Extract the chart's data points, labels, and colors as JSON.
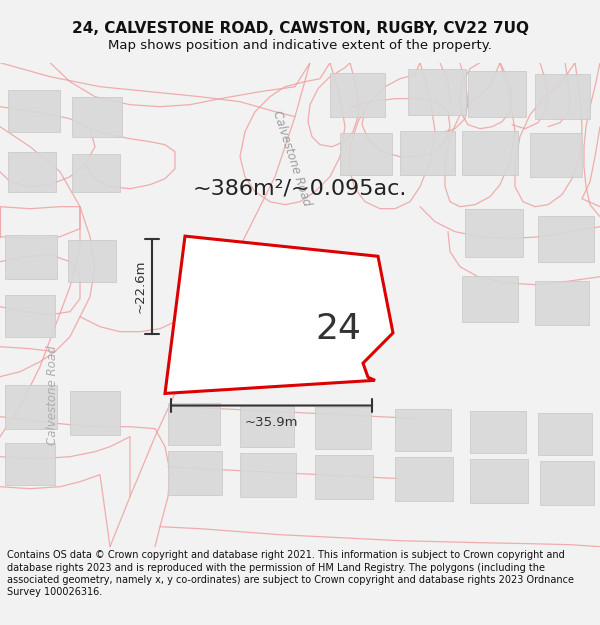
{
  "title_line1": "24, CALVESTONE ROAD, CAWSTON, RUGBY, CV22 7UQ",
  "title_line2": "Map shows position and indicative extent of the property.",
  "area_text": "~386m²/~0.095ac.",
  "plot_number": "24",
  "dim_width": "~35.9m",
  "dim_height": "~22.6m",
  "road_label_diagonal": "Calvestone Road",
  "road_label_left": "Calvestone Road",
  "footer_text": "Contains OS data © Crown copyright and database right 2021. This information is subject to Crown copyright and database rights 2023 and is reproduced with the permission of HM Land Registry. The polygons (including the associated geometry, namely x, y co-ordinates) are subject to Crown copyright and database rights 2023 Ordnance Survey 100026316.",
  "bg_color": "#f2f2f2",
  "map_bg": "#ffffff",
  "plot_edge": "#dd0000",
  "plot_edge_lw": 2.2,
  "road_line_color": "#f0a0a0",
  "building_fill": "#d8d8d8",
  "building_edge": "#c8c8c8",
  "dim_color": "#333333",
  "title_fontsize": 11,
  "subtitle_fontsize": 9.5,
  "footer_fontsize": 7.0,
  "area_fontsize": 16,
  "plot_num_fontsize": 26,
  "road_label_fontsize": 8.5
}
